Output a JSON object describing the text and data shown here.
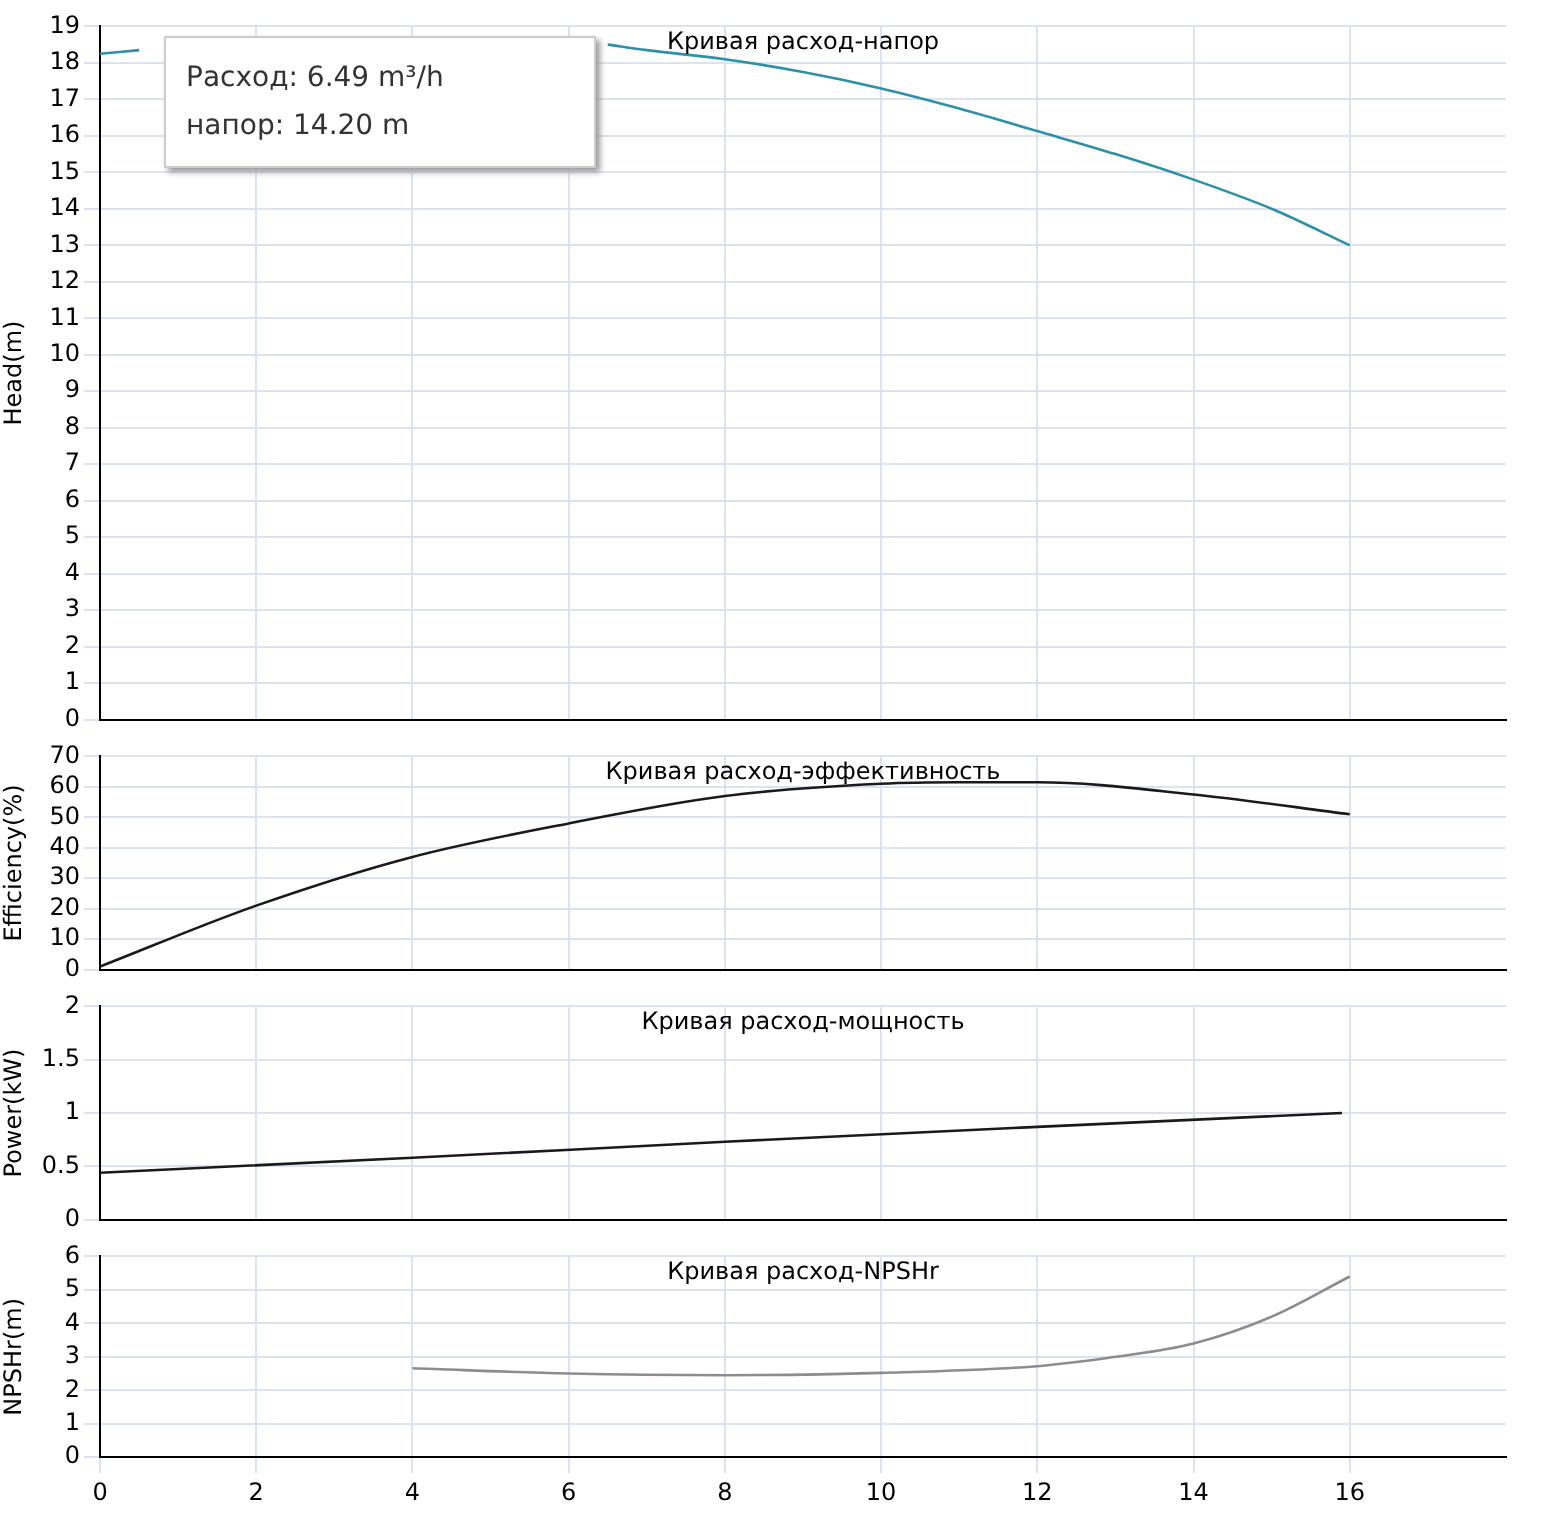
{
  "chart_data": [
    {
      "type": "line",
      "title": "Кривая расход-напор",
      "ylabel": "Head(m)",
      "xlim": [
        0,
        18
      ],
      "xticks": [
        0,
        2,
        4,
        6,
        8,
        10,
        12,
        14,
        16
      ],
      "ylim": [
        0,
        19
      ],
      "yticks": [
        0,
        1,
        2,
        3,
        4,
        5,
        6,
        7,
        8,
        9,
        10,
        11,
        12,
        13,
        14,
        15,
        16,
        17,
        18,
        19
      ],
      "tick_labels": "y",
      "grid": true,
      "legend": false,
      "marker": "none",
      "annotations": [
        "Расход: 6.49 m³/h",
        "напор: 14.20 m"
      ],
      "series": [
        {
          "color": "#2e8fa8",
          "x": [
            0,
            0.5,
            1,
            2,
            3,
            4,
            5,
            6,
            6.5,
            7,
            8,
            9,
            10,
            11,
            12,
            13,
            14,
            15,
            16
          ],
          "values": [
            18.25,
            18.35,
            null,
            null,
            null,
            null,
            null,
            null,
            18.5,
            18.35,
            18.1,
            17.75,
            17.3,
            16.75,
            16.13,
            15.5,
            14.8,
            14.0,
            13.0
          ]
        }
      ]
    },
    {
      "type": "line",
      "title": "Кривая расход-эффективность",
      "ylabel": "Efficiency(%)",
      "xlim": [
        0,
        18
      ],
      "xticks": [
        0,
        2,
        4,
        6,
        8,
        10,
        12,
        14,
        16
      ],
      "ylim": [
        0,
        70
      ],
      "yticks": [
        0,
        10,
        20,
        30,
        40,
        50,
        60,
        70
      ],
      "tick_labels": "y",
      "grid": true,
      "legend": false,
      "marker": "none",
      "series": [
        {
          "color": "#1a1a1a",
          "x": [
            0,
            2,
            4,
            6,
            8,
            10,
            11,
            12,
            14,
            16
          ],
          "values": [
            1,
            21,
            37,
            48,
            57,
            61,
            61.5,
            61.5,
            57.5,
            51
          ]
        }
      ]
    },
    {
      "type": "line",
      "title": "Кривая расход-мощность",
      "ylabel": "Power(kW)",
      "xlim": [
        0,
        18
      ],
      "xticks": [
        0,
        2,
        4,
        6,
        8,
        10,
        12,
        14,
        16
      ],
      "ylim": [
        0,
        2
      ],
      "yticks": [
        0,
        0.5,
        1,
        1.5,
        2
      ],
      "tick_labels": "y",
      "grid": true,
      "legend": false,
      "marker": "none",
      "series": [
        {
          "color": "#1a1a1a",
          "x": [
            0,
            4,
            8,
            12,
            15.9
          ],
          "values": [
            0.44,
            0.58,
            0.73,
            0.87,
            1.0
          ]
        }
      ]
    },
    {
      "type": "line",
      "title": "Кривая расход-NPSHr",
      "ylabel": "NPSHr(m)",
      "xlim": [
        0,
        18
      ],
      "xticks": [
        0,
        2,
        4,
        6,
        8,
        10,
        12,
        14,
        16
      ],
      "ylim": [
        0,
        6
      ],
      "yticks": [
        0,
        1,
        2,
        3,
        4,
        5,
        6
      ],
      "grid": true,
      "legend": false,
      "marker": "none",
      "series": [
        {
          "color": "#8c8c8c",
          "x": [
            4,
            6,
            8,
            10,
            12,
            13,
            14,
            15,
            16
          ],
          "values": [
            2.66,
            2.5,
            2.45,
            2.52,
            2.72,
            3.0,
            3.4,
            4.2,
            5.4
          ]
        }
      ]
    }
  ]
}
